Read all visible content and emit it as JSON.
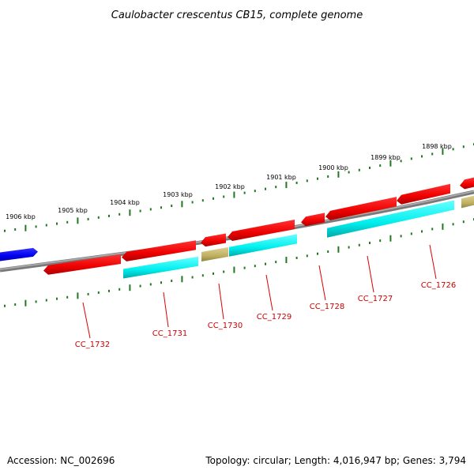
{
  "title": "Caulobacter crescentus CB15, complete genome",
  "footer": {
    "accession": "Accession: NC_002696",
    "summary": "Topology: circular; Length: 4,016,947 bp; Genes: 3,794"
  },
  "colors": {
    "backbone": "#808080",
    "tick": "#1f7a1f",
    "forward_cds": "#ff0000",
    "reverse_cds": "#00ffff",
    "other_feature": "#c8b870",
    "blue_feature": "#0000ff",
    "label": "#cc0000"
  },
  "kbp_labels": [
    "1906 kbp",
    "1905 kbp",
    "1904 kbp",
    "1903 kbp",
    "1902 kbp",
    "1901 kbp",
    "1900 kbp",
    "1899 kbp",
    "1898 kbp"
  ],
  "gene_labels": [
    "CC_1732",
    "CC_1731",
    "CC_1730",
    "CC_1729",
    "CC_1728",
    "CC_1727",
    "CC_1726"
  ]
}
